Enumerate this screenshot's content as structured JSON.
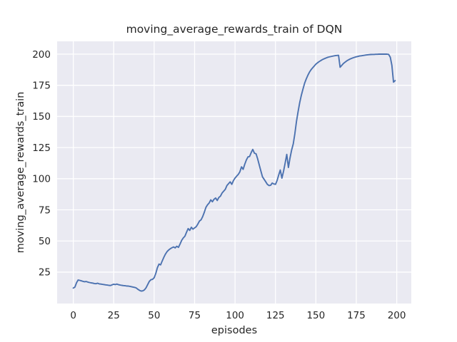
{
  "colors": {
    "line": "#4c72b0",
    "plot_background": "#eaeaf2",
    "grid": "#ffffff",
    "text": "#262626",
    "figure_background": "#ffffff"
  },
  "chart_data": {
    "type": "line",
    "title": "moving_average_rewards_train of DQN",
    "xlabel": "episodes",
    "ylabel": "moving_average_rewards_train",
    "x_ticks": [
      0,
      25,
      50,
      75,
      100,
      125,
      150,
      175,
      200
    ],
    "y_ticks": [
      25,
      50,
      75,
      100,
      125,
      150,
      175,
      200
    ],
    "xlim": [
      -10,
      209
    ],
    "ylim": [
      -0.2,
      210.3
    ],
    "grid": true,
    "legend_position": "none",
    "x_start": 0,
    "x_step": 1,
    "series": [
      {
        "name": "moving_average_rewards_train",
        "color": "#4c72b0",
        "y": [
          12.2,
          13.0,
          16.5,
          18.7,
          18.4,
          18.0,
          17.6,
          17.3,
          17.5,
          17.0,
          16.7,
          16.4,
          16.2,
          15.9,
          15.7,
          16.1,
          15.6,
          15.4,
          15.2,
          15.0,
          14.8,
          14.6,
          14.4,
          14.3,
          14.8,
          15.3,
          15.0,
          15.4,
          14.9,
          14.6,
          14.4,
          14.2,
          14.1,
          13.9,
          13.8,
          13.6,
          13.3,
          13.0,
          12.7,
          12.2,
          11.2,
          10.3,
          9.8,
          10.0,
          10.8,
          12.5,
          15.0,
          17.6,
          18.9,
          19.2,
          20.5,
          24.0,
          28.5,
          31.5,
          30.8,
          34.0,
          37.0,
          39.5,
          41.5,
          42.8,
          43.8,
          44.6,
          45.2,
          44.5,
          45.8,
          44.9,
          47.5,
          50.5,
          52.5,
          53.8,
          57.0,
          60.0,
          58.5,
          61.0,
          59.5,
          60.5,
          61.5,
          63.5,
          66.0,
          67.0,
          69.5,
          73.0,
          77.0,
          79.0,
          80.5,
          83.0,
          81.5,
          83.5,
          84.5,
          82.5,
          85.0,
          86.0,
          88.5,
          90.0,
          91.5,
          94.5,
          96.0,
          97.5,
          95.5,
          98.5,
          100.5,
          102.0,
          103.5,
          105.5,
          109.5,
          107.5,
          111.5,
          115.0,
          117.5,
          117.8,
          121.0,
          123.5,
          120.5,
          120.0,
          116.0,
          111.0,
          106.0,
          101.5,
          99.5,
          97.5,
          95.5,
          94.5,
          94.7,
          96.5,
          95.8,
          95.5,
          98.5,
          103.0,
          107.0,
          100.5,
          106.0,
          112.5,
          119.5,
          109.0,
          116.5,
          123.0,
          128.0,
          136.0,
          146.0,
          154.0,
          161.0,
          167.0,
          172.0,
          176.5,
          180.0,
          183.0,
          185.5,
          187.5,
          189.0,
          190.5,
          192.0,
          193.0,
          194.0,
          194.8,
          195.6,
          196.2,
          196.8,
          197.3,
          197.7,
          198.0,
          198.3,
          198.6,
          198.8,
          199.0,
          199.1,
          189.5,
          191.0,
          192.5,
          193.5,
          194.5,
          195.3,
          196.0,
          196.6,
          197.1,
          197.5,
          197.9,
          198.2,
          198.5,
          198.7,
          198.9,
          199.1,
          199.3,
          199.5,
          199.6,
          199.7,
          199.8,
          199.8,
          199.9,
          199.9,
          200.0,
          200.0,
          200.0,
          200.0,
          200.0,
          200.0,
          199.8,
          197.5,
          191.0,
          177.5,
          178.8
        ]
      }
    ]
  }
}
